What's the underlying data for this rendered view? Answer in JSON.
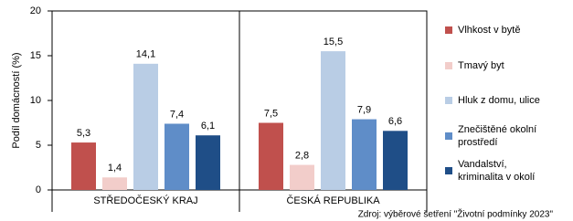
{
  "chart_data": {
    "type": "bar",
    "ylabel": "Podíl domácností (%)",
    "source": "Zdroj: výběrové šetření \"Životní podmínky 2023\"",
    "categories": [
      "STŘEDOČESKÝ KRAJ",
      "ČESKÁ REPUBLIKA"
    ],
    "series": [
      {
        "name": "Vlhkost v bytě",
        "color": "#c0504d",
        "values": [
          5.3,
          7.5
        ],
        "value_labels": [
          "5,3",
          "7,5"
        ]
      },
      {
        "name": "Tmavý byt",
        "color": "#f2cdca",
        "values": [
          1.4,
          2.8
        ],
        "value_labels": [
          "1,4",
          "2,8"
        ]
      },
      {
        "name": "Hluk z domu, ulice",
        "color": "#b9cde5",
        "values": [
          14.1,
          15.5
        ],
        "value_labels": [
          "14,1",
          "15,5"
        ]
      },
      {
        "name": "Znečištěné okolní prostředí",
        "color": "#5f8dc8",
        "values": [
          7.4,
          7.9
        ],
        "value_labels": [
          "7,4",
          "7,9"
        ]
      },
      {
        "name": "Vandalství, kriminalita v okolí",
        "color": "#1f4e87",
        "values": [
          6.1,
          6.6
        ],
        "value_labels": [
          "6,1",
          "6,6"
        ]
      }
    ],
    "ylim": [
      0,
      20
    ],
    "yticks": [
      0,
      5,
      10,
      15,
      20
    ]
  }
}
